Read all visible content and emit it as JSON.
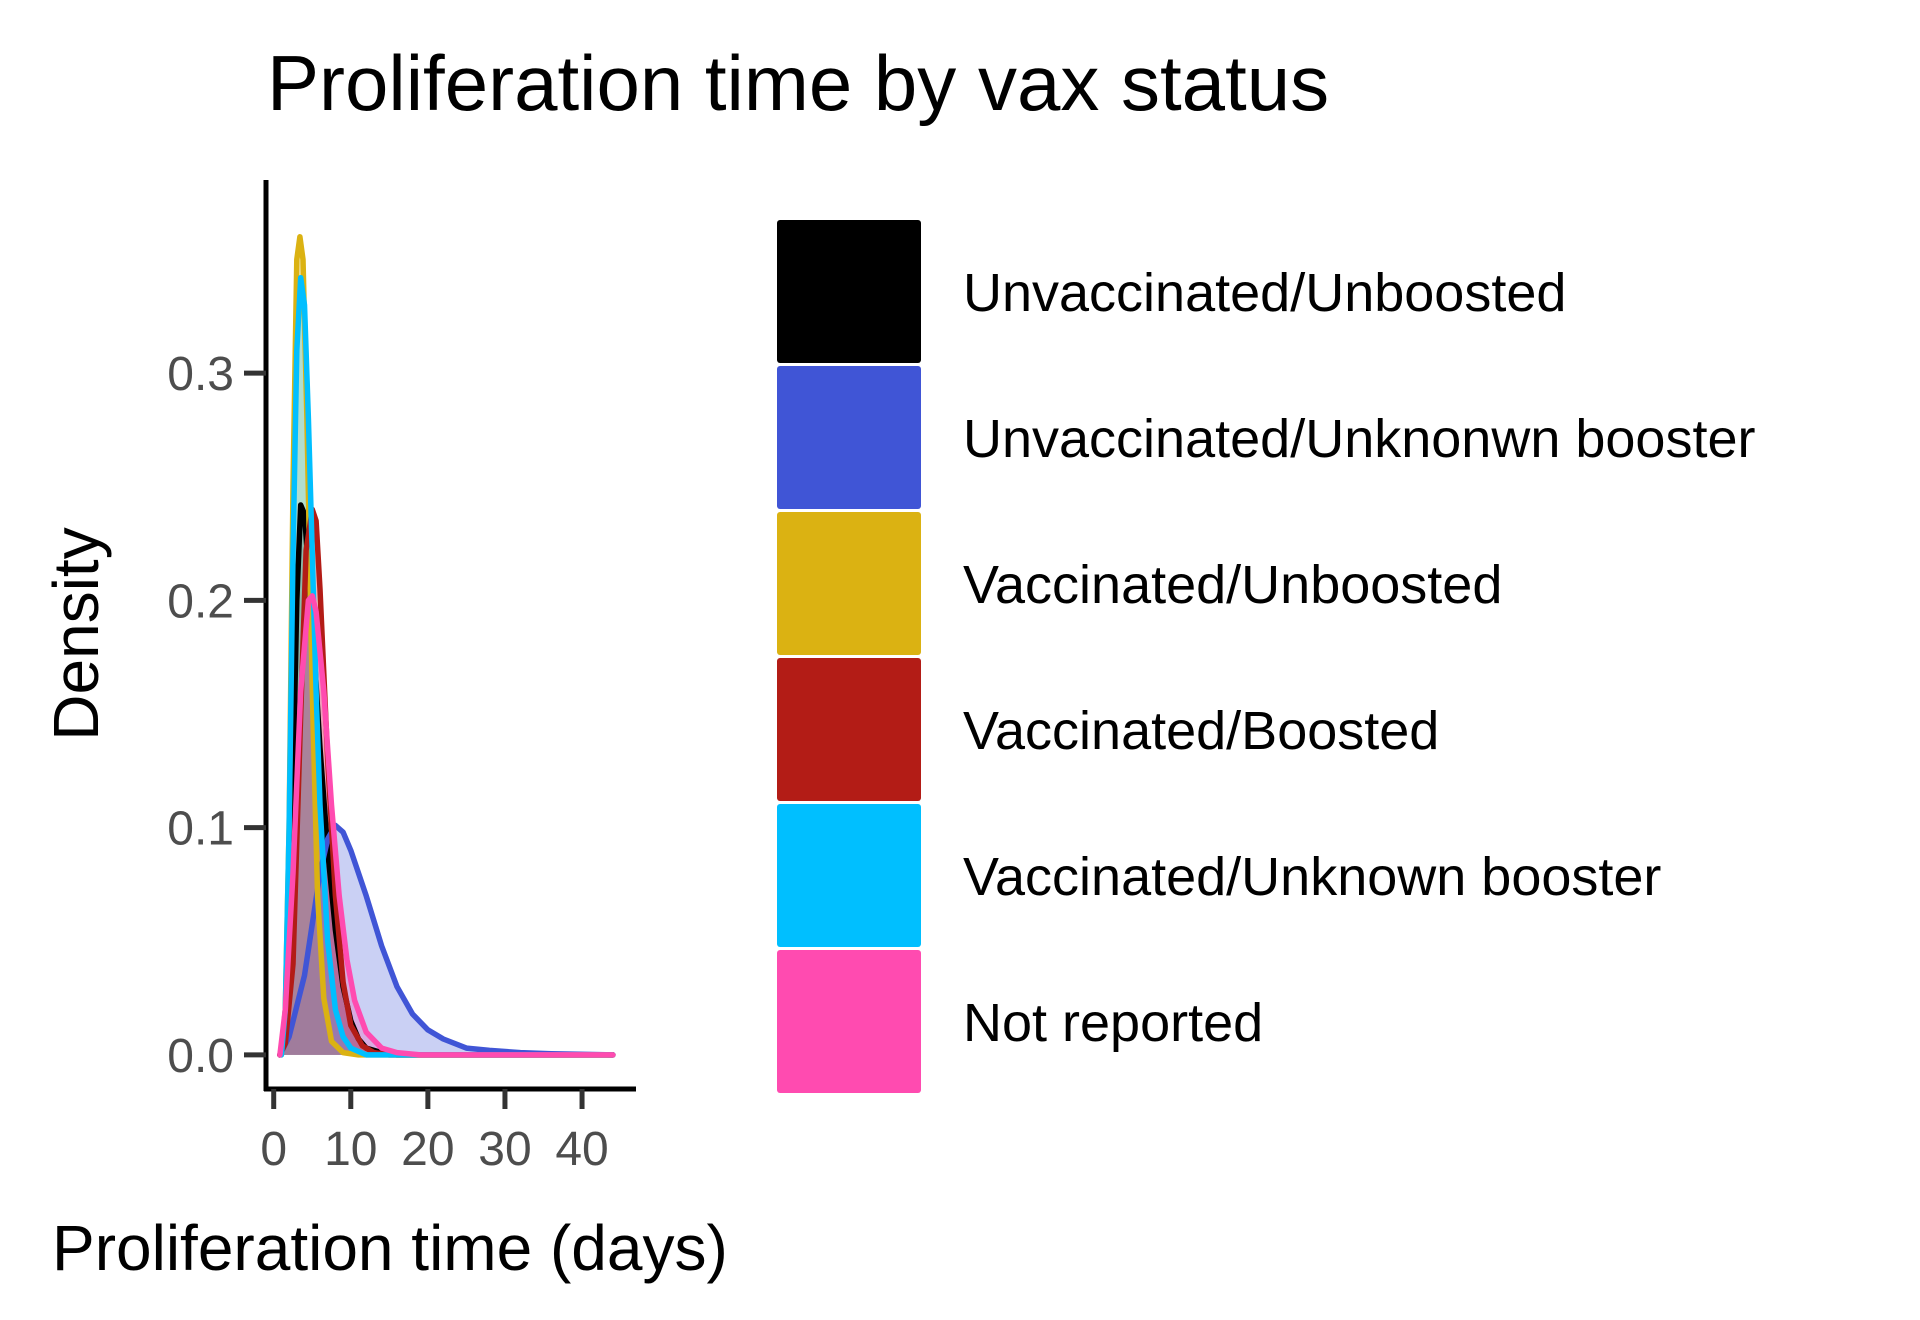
{
  "chart_data": {
    "type": "density",
    "title": "Proliferation time by vax status",
    "xlabel": "Proliferation time (days)",
    "ylabel": "Density",
    "xlim": [
      -1,
      47
    ],
    "ylim": [
      -0.015,
      0.385
    ],
    "x_ticks": [
      0,
      10,
      20,
      30,
      40
    ],
    "y_ticks": [
      0.0,
      0.1,
      0.2,
      0.3
    ],
    "y_tick_labels": [
      "0.0",
      "0.1",
      "0.2",
      "0.3"
    ],
    "grid": false,
    "legend_position": "right",
    "series": [
      {
        "name": "Unvaccinated/Unboosted",
        "color": "#000000",
        "points": [
          [
            0.8,
            0.0
          ],
          [
            1.5,
            0.01
          ],
          [
            2.0,
            0.05
          ],
          [
            2.5,
            0.12
          ],
          [
            3.0,
            0.2
          ],
          [
            3.5,
            0.242
          ],
          [
            4.0,
            0.238
          ],
          [
            5.0,
            0.19
          ],
          [
            6.0,
            0.135
          ],
          [
            7.0,
            0.09
          ],
          [
            8.0,
            0.055
          ],
          [
            9.0,
            0.03
          ],
          [
            10.0,
            0.015
          ],
          [
            11.0,
            0.007
          ],
          [
            12.0,
            0.003
          ],
          [
            14.0,
            0.001
          ],
          [
            16.0,
            0.0
          ],
          [
            44.0,
            0.0
          ]
        ]
      },
      {
        "name": "Unvaccinated/Unknonwn booster",
        "color": "#4055d6",
        "points": [
          [
            0.8,
            0.0
          ],
          [
            2.0,
            0.008
          ],
          [
            4.0,
            0.035
          ],
          [
            6.0,
            0.08
          ],
          [
            7.0,
            0.095
          ],
          [
            8.0,
            0.101
          ],
          [
            9.0,
            0.098
          ],
          [
            10.0,
            0.09
          ],
          [
            12.0,
            0.07
          ],
          [
            14.0,
            0.048
          ],
          [
            16.0,
            0.03
          ],
          [
            18.0,
            0.018
          ],
          [
            20.0,
            0.011
          ],
          [
            22.0,
            0.007
          ],
          [
            25.0,
            0.003
          ],
          [
            28.0,
            0.002
          ],
          [
            32.0,
            0.001
          ],
          [
            36.0,
            0.0005
          ],
          [
            44.0,
            0.0
          ]
        ]
      },
      {
        "name": "Vaccinated/Unboosted",
        "color": "#dbb212",
        "points": [
          [
            1.0,
            0.0
          ],
          [
            1.5,
            0.02
          ],
          [
            2.0,
            0.1
          ],
          [
            2.5,
            0.25
          ],
          [
            3.0,
            0.35
          ],
          [
            3.4,
            0.36
          ],
          [
            3.8,
            0.35
          ],
          [
            4.3,
            0.28
          ],
          [
            5.0,
            0.16
          ],
          [
            5.7,
            0.07
          ],
          [
            6.5,
            0.025
          ],
          [
            7.5,
            0.006
          ],
          [
            9.0,
            0.001
          ],
          [
            11.0,
            0.0
          ],
          [
            44.0,
            0.0
          ]
        ]
      },
      {
        "name": "Vaccinated/Boosted",
        "color": "#b31c16",
        "points": [
          [
            0.8,
            0.0
          ],
          [
            1.5,
            0.005
          ],
          [
            2.5,
            0.04
          ],
          [
            3.5,
            0.15
          ],
          [
            4.2,
            0.222
          ],
          [
            5.0,
            0.24
          ],
          [
            5.5,
            0.235
          ],
          [
            6.0,
            0.205
          ],
          [
            7.0,
            0.13
          ],
          [
            8.0,
            0.07
          ],
          [
            9.0,
            0.032
          ],
          [
            10.0,
            0.013
          ],
          [
            11.5,
            0.004
          ],
          [
            13.0,
            0.001
          ],
          [
            15.0,
            0.0
          ],
          [
            44.0,
            0.0
          ]
        ]
      },
      {
        "name": "Vaccinated/Unknown booster",
        "color": "#00bfff",
        "points": [
          [
            1.0,
            0.0
          ],
          [
            1.5,
            0.02
          ],
          [
            2.0,
            0.1
          ],
          [
            2.5,
            0.22
          ],
          [
            3.0,
            0.31
          ],
          [
            3.5,
            0.342
          ],
          [
            4.0,
            0.33
          ],
          [
            4.5,
            0.28
          ],
          [
            5.0,
            0.22
          ],
          [
            5.5,
            0.16
          ],
          [
            6.0,
            0.11
          ],
          [
            7.0,
            0.05
          ],
          [
            8.0,
            0.02
          ],
          [
            9.0,
            0.008
          ],
          [
            10.0,
            0.003
          ],
          [
            12.0,
            0.0
          ],
          [
            44.0,
            0.0
          ]
        ]
      },
      {
        "name": "Not reported",
        "color": "#ff4bb0",
        "points": [
          [
            0.8,
            0.0
          ],
          [
            1.5,
            0.02
          ],
          [
            2.5,
            0.08
          ],
          [
            3.5,
            0.16
          ],
          [
            4.5,
            0.2
          ],
          [
            5.0,
            0.202
          ],
          [
            5.5,
            0.195
          ],
          [
            6.5,
            0.16
          ],
          [
            7.5,
            0.11
          ],
          [
            8.5,
            0.07
          ],
          [
            9.5,
            0.042
          ],
          [
            10.5,
            0.024
          ],
          [
            12.0,
            0.01
          ],
          [
            14.0,
            0.003
          ],
          [
            16.0,
            0.001
          ],
          [
            19.0,
            0.0
          ],
          [
            44.0,
            0.0
          ]
        ]
      }
    ]
  }
}
